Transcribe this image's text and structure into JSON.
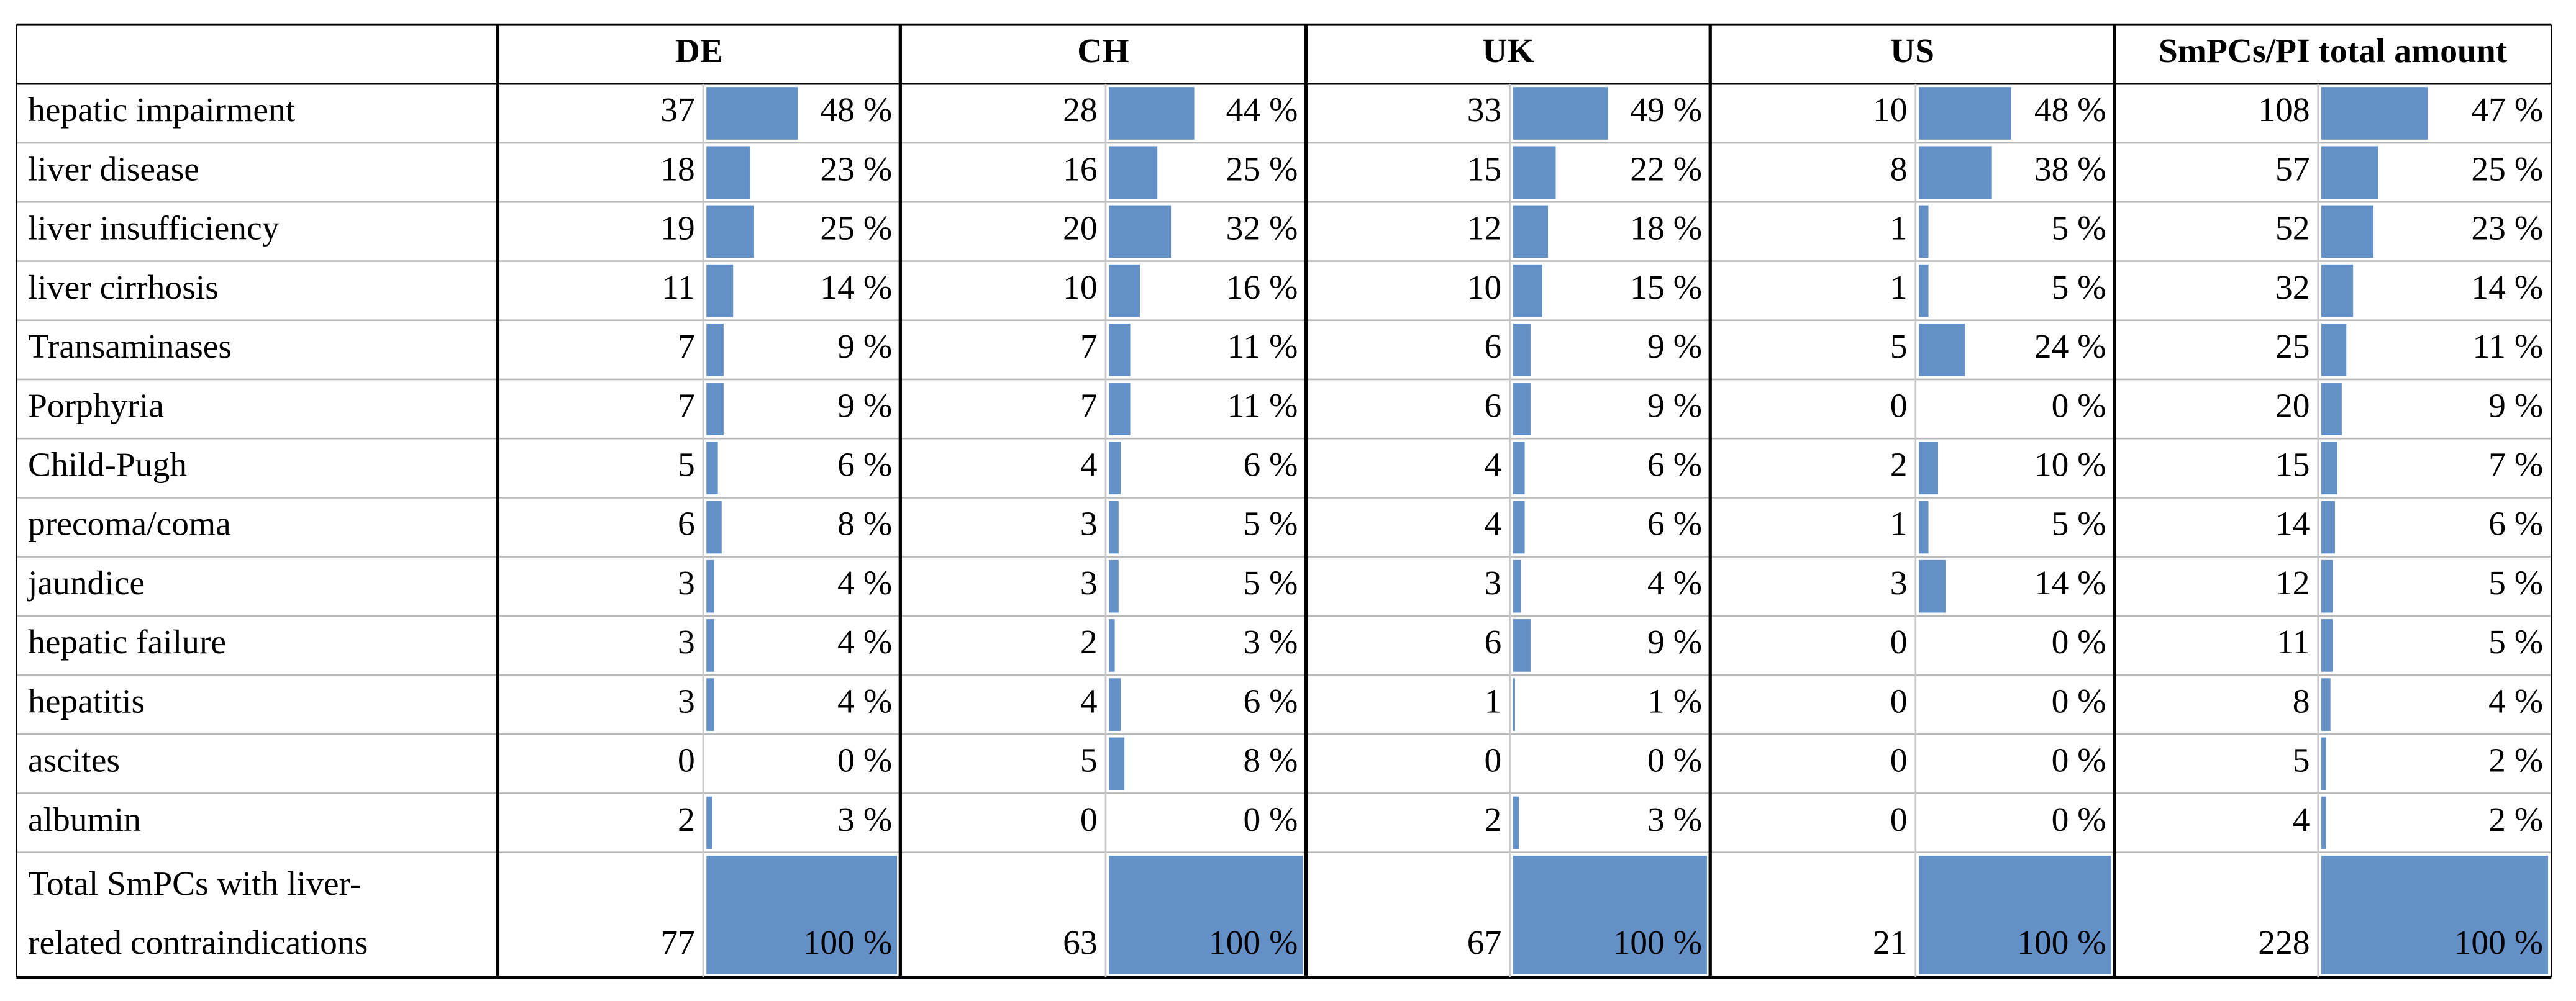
{
  "header": {
    "columns": [
      "DE",
      "CH",
      "UK",
      "US",
      "SmPCs/PI total amount"
    ]
  },
  "table": {
    "rows": [
      {
        "label": "hepatic impairment",
        "cells": [
          {
            "n": 37,
            "pct": {
              "value": 48,
              "label": "48 %"
            }
          },
          {
            "n": 28,
            "pct": {
              "value": 44,
              "label": "44 %"
            }
          },
          {
            "n": 33,
            "pct": {
              "value": 49,
              "label": "49 %"
            }
          },
          {
            "n": 10,
            "pct": {
              "value": 48,
              "label": "48 %"
            }
          },
          {
            "n": 108,
            "pct": {
              "value": 47,
              "label": "47 %"
            }
          }
        ]
      },
      {
        "label": "liver disease",
        "cells": [
          {
            "n": 18,
            "pct": {
              "value": 23,
              "label": "23 %"
            }
          },
          {
            "n": 16,
            "pct": {
              "value": 25,
              "label": "25 %"
            }
          },
          {
            "n": 15,
            "pct": {
              "value": 22,
              "label": "22 %"
            }
          },
          {
            "n": 8,
            "pct": {
              "value": 38,
              "label": "38 %"
            }
          },
          {
            "n": 57,
            "pct": {
              "value": 25,
              "label": "25 %"
            }
          }
        ]
      },
      {
        "label": "liver insufficiency",
        "cells": [
          {
            "n": 19,
            "pct": {
              "value": 25,
              "label": "25 %"
            }
          },
          {
            "n": 20,
            "pct": {
              "value": 32,
              "label": "32 %"
            }
          },
          {
            "n": 12,
            "pct": {
              "value": 18,
              "label": "18 %"
            }
          },
          {
            "n": 1,
            "pct": {
              "value": 5,
              "label": "5 %"
            }
          },
          {
            "n": 52,
            "pct": {
              "value": 23,
              "label": "23 %"
            }
          }
        ]
      },
      {
        "label": "liver cirrhosis",
        "cells": [
          {
            "n": 11,
            "pct": {
              "value": 14,
              "label": "14 %"
            }
          },
          {
            "n": 10,
            "pct": {
              "value": 16,
              "label": "16 %"
            }
          },
          {
            "n": 10,
            "pct": {
              "value": 15,
              "label": "15 %"
            }
          },
          {
            "n": 1,
            "pct": {
              "value": 5,
              "label": "5 %"
            }
          },
          {
            "n": 32,
            "pct": {
              "value": 14,
              "label": "14 %"
            }
          }
        ]
      },
      {
        "label": "Transaminases",
        "cells": [
          {
            "n": 7,
            "pct": {
              "value": 9,
              "label": "9 %"
            }
          },
          {
            "n": 7,
            "pct": {
              "value": 11,
              "label": "11 %"
            }
          },
          {
            "n": 6,
            "pct": {
              "value": 9,
              "label": "9 %"
            }
          },
          {
            "n": 5,
            "pct": {
              "value": 24,
              "label": "24 %"
            }
          },
          {
            "n": 25,
            "pct": {
              "value": 11,
              "label": "11 %"
            }
          }
        ]
      },
      {
        "label": "Porphyria",
        "cells": [
          {
            "n": 7,
            "pct": {
              "value": 9,
              "label": "9 %"
            }
          },
          {
            "n": 7,
            "pct": {
              "value": 11,
              "label": "11 %"
            }
          },
          {
            "n": 6,
            "pct": {
              "value": 9,
              "label": "9 %"
            }
          },
          {
            "n": 0,
            "pct": {
              "value": 0,
              "label": "0 %"
            }
          },
          {
            "n": 20,
            "pct": {
              "value": 9,
              "label": "9 %"
            }
          }
        ]
      },
      {
        "label": "Child-Pugh",
        "cells": [
          {
            "n": 5,
            "pct": {
              "value": 6,
              "label": "6 %"
            }
          },
          {
            "n": 4,
            "pct": {
              "value": 6,
              "label": "6 %"
            }
          },
          {
            "n": 4,
            "pct": {
              "value": 6,
              "label": "6 %"
            }
          },
          {
            "n": 2,
            "pct": {
              "value": 10,
              "label": "10 %"
            }
          },
          {
            "n": 15,
            "pct": {
              "value": 7,
              "label": "7 %"
            }
          }
        ]
      },
      {
        "label": "precoma/coma",
        "cells": [
          {
            "n": 6,
            "pct": {
              "value": 8,
              "label": "8 %"
            }
          },
          {
            "n": 3,
            "pct": {
              "value": 5,
              "label": "5 %"
            }
          },
          {
            "n": 4,
            "pct": {
              "value": 6,
              "label": "6 %"
            }
          },
          {
            "n": 1,
            "pct": {
              "value": 5,
              "label": "5 %"
            }
          },
          {
            "n": 14,
            "pct": {
              "value": 6,
              "label": "6 %"
            }
          }
        ]
      },
      {
        "label": "jaundice",
        "cells": [
          {
            "n": 3,
            "pct": {
              "value": 4,
              "label": "4 %"
            }
          },
          {
            "n": 3,
            "pct": {
              "value": 5,
              "label": "5 %"
            }
          },
          {
            "n": 3,
            "pct": {
              "value": 4,
              "label": "4 %"
            }
          },
          {
            "n": 3,
            "pct": {
              "value": 14,
              "label": "14 %"
            }
          },
          {
            "n": 12,
            "pct": {
              "value": 5,
              "label": "5 %"
            }
          }
        ]
      },
      {
        "label": "hepatic failure",
        "cells": [
          {
            "n": 3,
            "pct": {
              "value": 4,
              "label": "4 %"
            }
          },
          {
            "n": 2,
            "pct": {
              "value": 3,
              "label": "3 %"
            }
          },
          {
            "n": 6,
            "pct": {
              "value": 9,
              "label": "9 %"
            }
          },
          {
            "n": 0,
            "pct": {
              "value": 0,
              "label": "0 %"
            }
          },
          {
            "n": 11,
            "pct": {
              "value": 5,
              "label": "5 %"
            }
          }
        ]
      },
      {
        "label": "hepatitis",
        "cells": [
          {
            "n": 3,
            "pct": {
              "value": 4,
              "label": "4 %"
            }
          },
          {
            "n": 4,
            "pct": {
              "value": 6,
              "label": "6 %"
            }
          },
          {
            "n": 1,
            "pct": {
              "value": 1,
              "label": "1 %"
            }
          },
          {
            "n": 0,
            "pct": {
              "value": 0,
              "label": "0 %"
            }
          },
          {
            "n": 8,
            "pct": {
              "value": 4,
              "label": "4 %"
            }
          }
        ]
      },
      {
        "label": "ascites",
        "cells": [
          {
            "n": 0,
            "pct": {
              "value": 0,
              "label": "0 %"
            }
          },
          {
            "n": 5,
            "pct": {
              "value": 8,
              "label": "8 %"
            }
          },
          {
            "n": 0,
            "pct": {
              "value": 0,
              "label": "0 %"
            }
          },
          {
            "n": 0,
            "pct": {
              "value": 0,
              "label": "0 %"
            }
          },
          {
            "n": 5,
            "pct": {
              "value": 2,
              "label": "2 %"
            }
          }
        ]
      },
      {
        "label": "albumin",
        "cells": [
          {
            "n": 2,
            "pct": {
              "value": 3,
              "label": "3 %"
            }
          },
          {
            "n": 0,
            "pct": {
              "value": 0,
              "label": "0 %"
            }
          },
          {
            "n": 2,
            "pct": {
              "value": 3,
              "label": "3 %"
            }
          },
          {
            "n": 0,
            "pct": {
              "value": 0,
              "label": "0 %"
            }
          },
          {
            "n": 4,
            "pct": {
              "value": 2,
              "label": "2 %"
            }
          }
        ]
      }
    ],
    "total": {
      "label_lines": [
        "Total SmPCs with liver-",
        "related contraindications"
      ],
      "cells": [
        {
          "n": 77,
          "pct": {
            "value": 100,
            "label": "100 %"
          }
        },
        {
          "n": 63,
          "pct": {
            "value": 100,
            "label": "100 %"
          }
        },
        {
          "n": 67,
          "pct": {
            "value": 100,
            "label": "100 %"
          }
        },
        {
          "n": 21,
          "pct": {
            "value": 100,
            "label": "100 %"
          }
        },
        {
          "n": 228,
          "pct": {
            "value": 100,
            "label": "100 %"
          }
        }
      ]
    }
  }
}
